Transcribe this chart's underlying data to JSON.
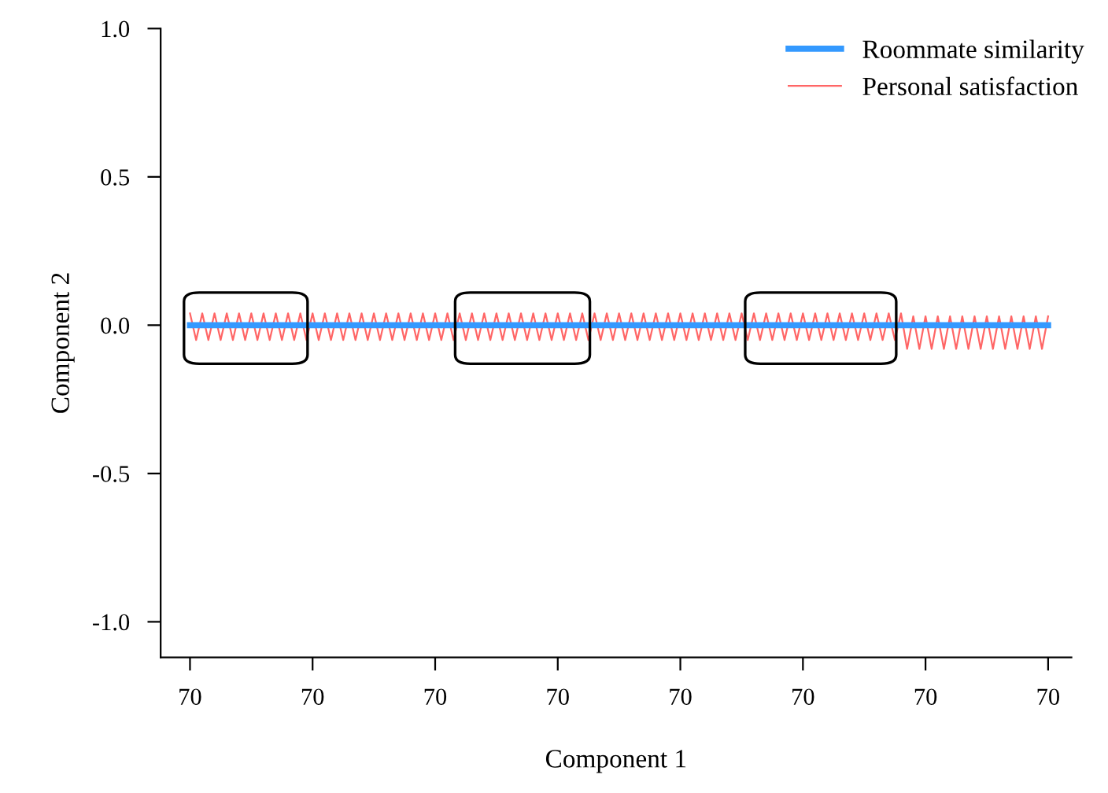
{
  "chart_data": {
    "type": "line",
    "xlabel": "Component 1",
    "ylabel": "Component 2",
    "categories": [
      "70",
      null,
      null,
      null,
      null,
      null,
      null,
      null,
      null,
      null,
      null,
      null,
      null,
      null,
      null,
      null,
      null,
      null,
      null,
      null,
      "70",
      null,
      null,
      null,
      null,
      null,
      null,
      null,
      null,
      null,
      null,
      null,
      null,
      null,
      null,
      null,
      null,
      null,
      null,
      null,
      "70",
      null,
      null,
      null,
      null,
      null,
      null,
      null,
      null,
      null,
      null,
      null,
      null,
      null,
      null,
      null,
      null,
      null,
      null,
      null,
      "70",
      null,
      null,
      null,
      null,
      null,
      null,
      null,
      null,
      null,
      null,
      null,
      null,
      null,
      null,
      null,
      null,
      null,
      null,
      null,
      "70",
      null,
      null,
      null,
      null,
      null,
      null,
      null,
      null,
      null,
      null,
      null,
      null,
      null,
      null,
      null,
      null,
      null,
      null,
      null,
      "70",
      null,
      null,
      null,
      null,
      null,
      null,
      null,
      null,
      null,
      null,
      null,
      null,
      null,
      null,
      null,
      null,
      null,
      null,
      null,
      "70",
      null,
      null,
      null,
      null,
      null,
      null,
      null,
      null,
      null,
      null,
      null,
      null,
      null,
      null,
      null,
      null,
      null,
      null,
      null,
      "70"
    ],
    "ylim": [
      -1.12,
      1.0
    ],
    "yticks": [
      {
        "value": -1.0,
        "label": "-1.0"
      },
      {
        "value": -0.5,
        "label": "-0.5"
      },
      {
        "value": 0.0,
        "label": "0.0"
      },
      {
        "value": 0.5,
        "label": "0.5"
      },
      {
        "value": 1.0,
        "label": "1.0"
      }
    ],
    "grid": false,
    "legend": "top right",
    "marker": "none",
    "series": [
      {
        "name": "Roommate similarity",
        "color": "#3399ff",
        "values": [
          0,
          0,
          0,
          0,
          0,
          0,
          0,
          0,
          0,
          0,
          0,
          0,
          0,
          0,
          0,
          0,
          0,
          0,
          0,
          0,
          0,
          0,
          0,
          0,
          0,
          0,
          0,
          0,
          0,
          0,
          0,
          0,
          0,
          0,
          0,
          0,
          0,
          0,
          0,
          0,
          0,
          0,
          0,
          0,
          0,
          0,
          0,
          0,
          0,
          0,
          0,
          0,
          0,
          0,
          0,
          0,
          0,
          0,
          0,
          0,
          0,
          0,
          0,
          0,
          0,
          0,
          0,
          0,
          0,
          0,
          0,
          0,
          0,
          0,
          0,
          0,
          0,
          0,
          0,
          0,
          0,
          0,
          0,
          0,
          0,
          0,
          0,
          0,
          0,
          0,
          0,
          0,
          0,
          0,
          0,
          0,
          0,
          0,
          0,
          0,
          0,
          0,
          0,
          0,
          0,
          0,
          0,
          0,
          0,
          0,
          0,
          0,
          0,
          0,
          0,
          0,
          0,
          0,
          0,
          0,
          0,
          0,
          0,
          0,
          0,
          0,
          0,
          0,
          0,
          0,
          0,
          0,
          0,
          0,
          0,
          0,
          0,
          0,
          0,
          0,
          0
        ]
      },
      {
        "name": "Personal satisfaction",
        "color": "#ff6666",
        "values": [
          0.04,
          -0.05,
          0.04,
          -0.05,
          0.04,
          -0.05,
          0.04,
          -0.05,
          0.04,
          -0.05,
          0.04,
          -0.05,
          0.04,
          -0.05,
          0.04,
          -0.05,
          0.04,
          -0.05,
          0.04,
          -0.05,
          0.04,
          -0.05,
          0.04,
          -0.05,
          0.04,
          -0.05,
          0.04,
          -0.05,
          0.04,
          -0.05,
          0.04,
          -0.05,
          0.04,
          -0.05,
          0.04,
          -0.05,
          0.04,
          -0.05,
          0.04,
          -0.05,
          0.04,
          -0.05,
          0.04,
          -0.05,
          0.04,
          -0.05,
          0.04,
          -0.05,
          0.04,
          -0.05,
          0.04,
          -0.05,
          0.04,
          -0.05,
          0.04,
          -0.05,
          0.04,
          -0.05,
          0.04,
          -0.05,
          0.04,
          -0.05,
          0.04,
          -0.05,
          0.04,
          -0.05,
          0.04,
          -0.05,
          0.04,
          -0.05,
          0.04,
          -0.05,
          0.04,
          -0.05,
          0.04,
          -0.05,
          0.04,
          -0.05,
          0.04,
          -0.05,
          0.04,
          -0.05,
          0.04,
          -0.05,
          0.04,
          -0.05,
          0.04,
          -0.05,
          0.04,
          -0.05,
          0.04,
          -0.05,
          0.04,
          -0.05,
          0.04,
          -0.05,
          0.04,
          -0.05,
          0.04,
          -0.05,
          0.04,
          -0.05,
          0.04,
          -0.05,
          0.04,
          -0.05,
          0.04,
          -0.05,
          0.04,
          -0.05,
          0.04,
          -0.05,
          0.04,
          -0.05,
          0.04,
          -0.05,
          0.04,
          -0.08,
          0.03,
          -0.08,
          0.03,
          -0.08,
          0.03,
          -0.08,
          0.03,
          -0.08,
          0.03,
          -0.08,
          0.03,
          -0.08,
          0.03,
          -0.08,
          0.03,
          -0.08,
          0.03,
          -0.08,
          0.03,
          -0.08,
          0.03,
          -0.08,
          0.03
        ]
      }
    ]
  }
}
